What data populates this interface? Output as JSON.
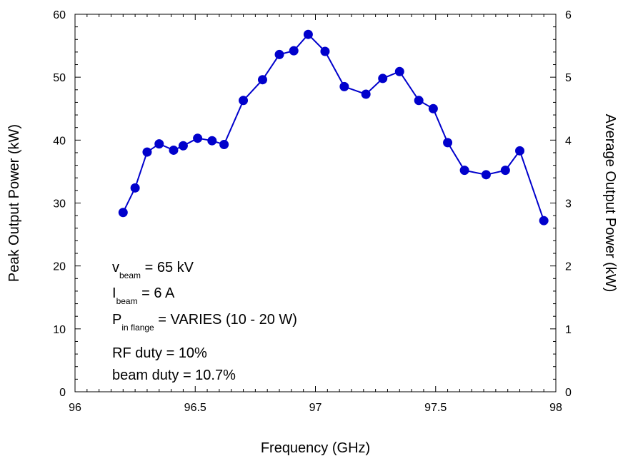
{
  "chart_data": {
    "type": "line",
    "xlabel": "Frequency (GHz)",
    "ylabel": "Peak Output Power (kW)",
    "y2label": "Average Output Power (kW)",
    "xlim": [
      96,
      98
    ],
    "ylim": [
      0,
      60
    ],
    "y2lim": [
      0,
      6
    ],
    "x_ticks": [
      "96",
      "96.5",
      "97",
      "97.5",
      "98"
    ],
    "y_ticks": [
      "0",
      "10",
      "20",
      "30",
      "40",
      "50",
      "60"
    ],
    "y2_ticks": [
      "0",
      "1",
      "2",
      "3",
      "4",
      "5",
      "6"
    ],
    "grid": false,
    "series": [
      {
        "color": "#0000cc",
        "x": [
          96.2,
          96.25,
          96.3,
          96.35,
          96.41,
          96.45,
          96.51,
          96.57,
          96.62,
          96.7,
          96.78,
          96.85,
          96.91,
          96.97,
          97.04,
          97.12,
          97.21,
          97.28,
          97.35,
          97.43,
          97.49,
          97.55,
          97.62,
          97.71,
          97.79,
          97.85,
          97.95
        ],
        "y": [
          28.5,
          32.4,
          38.1,
          39.4,
          38.4,
          39.1,
          40.3,
          39.9,
          39.3,
          46.3,
          49.6,
          53.6,
          54.2,
          56.8,
          54.1,
          48.5,
          47.3,
          49.8,
          50.9,
          46.3,
          45.0,
          39.6,
          35.2,
          34.5,
          35.2,
          38.3,
          27.2
        ]
      }
    ],
    "annotations": [
      {
        "main": "v",
        "sub": "beam",
        "rest": " = 65 kV"
      },
      {
        "main": "I",
        "sub": "beam",
        "rest": " = 6 A"
      },
      {
        "main": "P",
        "sub": "in flange",
        "rest": " = VARIES (10 - 20 W)"
      },
      {
        "main": "RF duty = 10%",
        "sub": "",
        "rest": ""
      },
      {
        "main": "beam duty = 10.7%",
        "sub": "",
        "rest": ""
      }
    ]
  }
}
